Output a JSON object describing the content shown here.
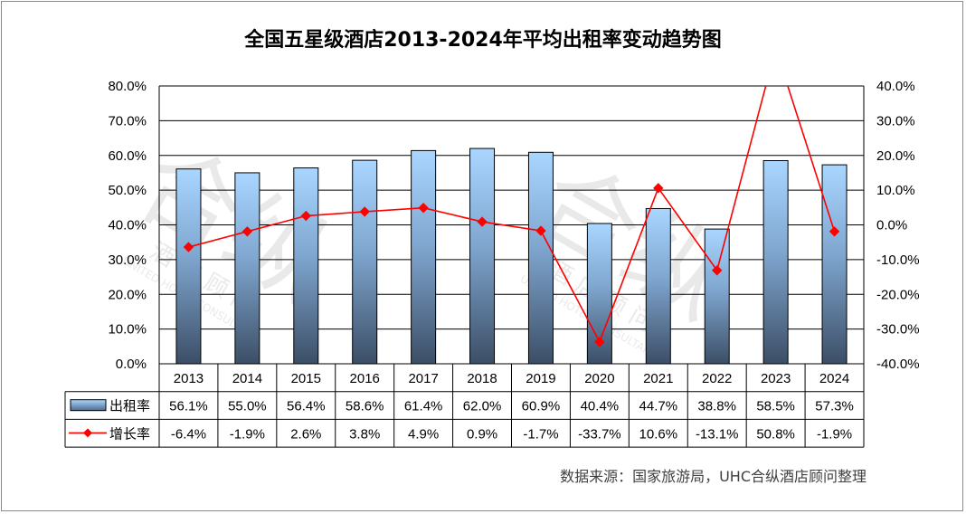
{
  "chart_data": {
    "type": "bar",
    "title": "全国五星级酒店2013-2024年平均出租率变动趋势图",
    "categories": [
      "2013",
      "2014",
      "2015",
      "2016",
      "2017",
      "2018",
      "2019",
      "2020",
      "2021",
      "2022",
      "2023",
      "2024"
    ],
    "series": [
      {
        "name": "出租率",
        "type": "bar",
        "axis": "left",
        "values": [
          56.1,
          55.0,
          56.4,
          58.6,
          61.4,
          62.0,
          60.9,
          40.4,
          44.7,
          38.8,
          58.5,
          57.3
        ],
        "labels": [
          "56.1%",
          "55.0%",
          "56.4%",
          "58.6%",
          "61.4%",
          "62.0%",
          "60.9%",
          "40.4%",
          "44.7%",
          "38.8%",
          "58.5%",
          "57.3%"
        ]
      },
      {
        "name": "增长率",
        "type": "line",
        "axis": "right",
        "values": [
          -6.4,
          -1.9,
          2.6,
          3.8,
          4.9,
          0.9,
          -1.7,
          -33.7,
          10.6,
          -13.1,
          50.8,
          -1.9
        ],
        "labels": [
          "-6.4%",
          "-1.9%",
          "2.6%",
          "3.8%",
          "4.9%",
          "0.9%",
          "-1.7%",
          "-33.7%",
          "10.6%",
          "-13.1%",
          "50.8%",
          "-1.9%"
        ]
      }
    ],
    "y_left": {
      "ylim": [
        0,
        80
      ],
      "ticks": [
        "80.0%",
        "70.0%",
        "60.0%",
        "50.0%",
        "40.0%",
        "30.0%",
        "20.0%",
        "10.0%",
        "0.0%"
      ]
    },
    "y_right": {
      "ylim": [
        -40,
        40
      ],
      "ticks": [
        "40.0%",
        "30.0%",
        "20.0%",
        "10.0%",
        "0.0%",
        "-10.0%",
        "-20.0%",
        "-30.0%",
        "-40.0%"
      ]
    },
    "grid": true,
    "data_table": true,
    "source": "数据来源：国家旅游局，UHC合纵酒店顾问整理",
    "watermark": [
      "合",
      "纵",
      "酒",
      "店",
      "顾",
      "问",
      "UNITED HOTEL CONSULTANT"
    ]
  },
  "colors": {
    "bar_top": "#a9d6ff",
    "bar_bottom": "#3c4e66",
    "line": "#ff0000",
    "grid": "#000000"
  }
}
